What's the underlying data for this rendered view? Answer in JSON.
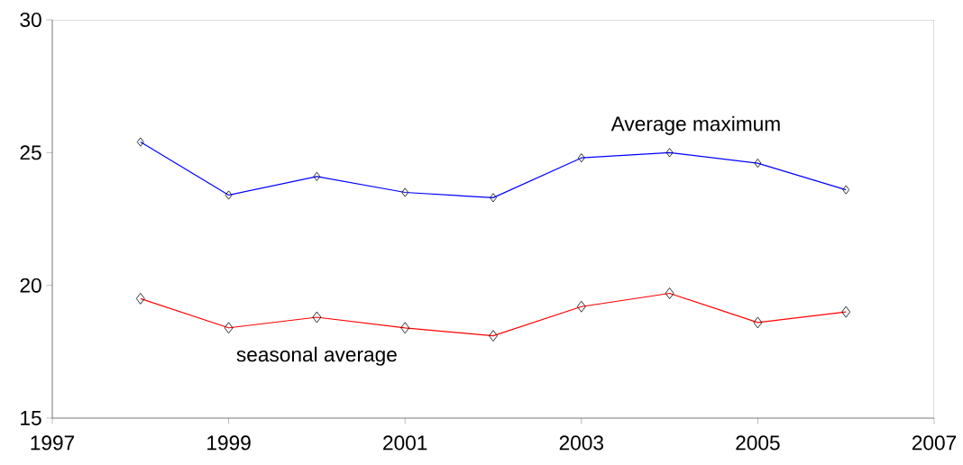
{
  "chart_data": {
    "type": "line",
    "x": [
      1998,
      1999,
      2000,
      2001,
      2002,
      2003,
      2004,
      2005,
      2006
    ],
    "series": [
      {
        "name": "Average maximum",
        "color": "#0000ff",
        "values": [
          25.4,
          23.4,
          24.1,
          23.5,
          23.3,
          24.8,
          25.0,
          24.6,
          23.6
        ]
      },
      {
        "name": "seasonal average",
        "color": "#ff0000",
        "values": [
          19.5,
          18.4,
          18.8,
          18.4,
          18.1,
          19.2,
          19.7,
          18.6,
          19.0
        ]
      }
    ],
    "xlim": [
      1997,
      2007
    ],
    "xticks": [
      1997,
      1999,
      2001,
      2003,
      2005,
      2007
    ],
    "ylim": [
      15,
      30
    ],
    "yticks": [
      15,
      20,
      25,
      30
    ],
    "grid": false,
    "legend": false,
    "marker": "diamond",
    "line_style": "solid"
  }
}
